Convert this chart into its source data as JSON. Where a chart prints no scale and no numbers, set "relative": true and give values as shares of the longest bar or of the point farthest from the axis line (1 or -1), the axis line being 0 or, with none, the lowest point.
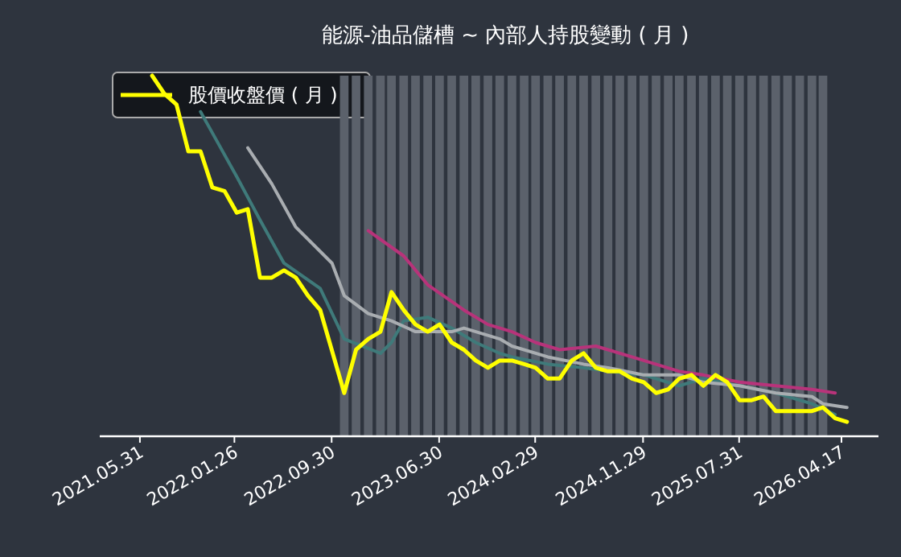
{
  "chart_data": {
    "type": "line",
    "title": "能源-油品儲槽 ~ 內部人持股變動 ( 月 )",
    "relative": true,
    "legend": "top left",
    "xlim": [
      "2021-02-18",
      "2026-07-20"
    ],
    "xticks": [
      {
        "value": "2021-05-31",
        "label": "2021.05.31"
      },
      {
        "value": "2022-01-26",
        "label": "2022.01.26"
      },
      {
        "value": "2022-09-30",
        "label": "2022.09.30"
      },
      {
        "value": "2023-06-30",
        "label": "2023.06.30"
      },
      {
        "value": "2024-02-29",
        "label": "2024.02.29"
      },
      {
        "value": "2024-11-29",
        "label": "2024.11.29"
      },
      {
        "value": "2025-07-31",
        "label": "2025.07.31"
      },
      {
        "value": "2026-04-17",
        "label": "2026.04.17"
      }
    ],
    "series": [
      {
        "type": "bar",
        "color": "#5b616b",
        "x": [
          "2022-11",
          "2022-12",
          "2023-01",
          "2023-02",
          "2023-03",
          "2023-04",
          "2023-05",
          "2023-06",
          "2023-07",
          "2023-08",
          "2023-09",
          "2023-10",
          "2023-11",
          "2023-12",
          "2024-01",
          "2024-02",
          "2024-03",
          "2024-04",
          "2024-05",
          "2024-06",
          "2024-07",
          "2024-08",
          "2024-09",
          "2024-10",
          "2024-11",
          "2024-12",
          "2025-01",
          "2025-02",
          "2025-03",
          "2025-04",
          "2025-05",
          "2025-06",
          "2025-07",
          "2025-08",
          "2025-09",
          "2025-10",
          "2025-11",
          "2025-12",
          "2026-01",
          "2026-02",
          "2026-03"
        ],
        "values": [
          1,
          1,
          1,
          1,
          1,
          1,
          1,
          1,
          1,
          1,
          1,
          1,
          1,
          1,
          1,
          1,
          1,
          1,
          1,
          1,
          1,
          1,
          1,
          1,
          1,
          1,
          1,
          1,
          1,
          1,
          1,
          1,
          1,
          1,
          1,
          1,
          1,
          1,
          1,
          1,
          1
        ]
      },
      {
        "color": "#3f7a7a",
        "x": [
          "2021-11",
          "2022-02",
          "2022-04",
          "2022-06",
          "2022-09",
          "2022-11",
          "2023-02",
          "2023-03",
          "2023-04",
          "2023-06",
          "2023-08",
          "2023-10",
          "2023-12",
          "2024-01",
          "2024-04",
          "2024-07",
          "2024-09",
          "2024-12",
          "2025-03",
          "2025-05",
          "2025-08",
          "2025-11",
          "2026-02",
          "2026-04"
        ],
        "values": [
          0.9,
          0.72,
          0.6,
          0.48,
          0.41,
          0.27,
          0.23,
          0.26,
          0.32,
          0.33,
          0.3,
          0.26,
          0.23,
          0.22,
          0.2,
          0.19,
          0.18,
          0.17,
          0.14,
          0.16,
          0.14,
          0.12,
          0.09,
          0.06
        ]
      },
      {
        "color": "#a9adb1",
        "x": [
          "2022-03",
          "2022-05",
          "2022-07",
          "2022-10",
          "2022-11",
          "2023-01",
          "2023-03",
          "2023-05",
          "2023-08",
          "2023-09",
          "2023-12",
          "2024-01",
          "2024-04",
          "2024-07",
          "2024-09",
          "2024-12",
          "2025-03",
          "2025-05",
          "2025-08",
          "2025-11",
          "2026-02",
          "2026-03",
          "2026-05"
        ],
        "values": [
          0.8,
          0.7,
          0.58,
          0.48,
          0.39,
          0.34,
          0.32,
          0.29,
          0.29,
          0.3,
          0.27,
          0.25,
          0.22,
          0.2,
          0.19,
          0.17,
          0.17,
          0.15,
          0.14,
          0.12,
          0.11,
          0.09,
          0.08
        ]
      },
      {
        "color": "#b8337a",
        "x": [
          "2023-01",
          "2023-04",
          "2023-06",
          "2023-09",
          "2023-11",
          "2024-01",
          "2024-03",
          "2024-05",
          "2024-08",
          "2024-09",
          "2024-12",
          "2025-03",
          "2025-05",
          "2025-08",
          "2025-11",
          "2026-02",
          "2026-04"
        ],
        "values": [
          0.57,
          0.5,
          0.42,
          0.35,
          0.31,
          0.29,
          0.26,
          0.24,
          0.25,
          0.24,
          0.21,
          0.18,
          0.17,
          0.15,
          0.14,
          0.13,
          0.12
        ]
      },
      {
        "name": "股價收盤價 ( 月 )",
        "color": "#ffff00",
        "x": [
          "2021-07",
          "2021-08",
          "2021-09",
          "2021-10",
          "2021-11",
          "2021-12",
          "2022-01",
          "2022-02",
          "2022-03",
          "2022-04",
          "2022-05",
          "2022-06",
          "2022-07",
          "2022-08",
          "2022-09",
          "2022-11",
          "2022-12",
          "2023-01",
          "2023-02",
          "2023-03",
          "2023-04",
          "2023-05",
          "2023-06",
          "2023-07",
          "2023-08",
          "2023-09",
          "2023-10",
          "2023-11",
          "2023-12",
          "2024-01",
          "2024-02",
          "2024-03",
          "2024-04",
          "2024-05",
          "2024-06",
          "2024-07",
          "2024-08",
          "2024-09",
          "2024-10",
          "2024-11",
          "2024-12",
          "2025-01",
          "2025-02",
          "2025-03",
          "2025-04",
          "2025-05",
          "2025-06",
          "2025-07",
          "2025-08",
          "2025-09",
          "2025-10",
          "2025-11",
          "2025-12",
          "2026-01",
          "2026-02",
          "2026-03",
          "2026-04",
          "2026-05"
        ],
        "values": [
          1.0,
          0.95,
          0.92,
          0.79,
          0.79,
          0.69,
          0.68,
          0.62,
          0.63,
          0.44,
          0.44,
          0.46,
          0.44,
          0.39,
          0.35,
          0.12,
          0.24,
          0.27,
          0.29,
          0.4,
          0.35,
          0.31,
          0.29,
          0.31,
          0.26,
          0.24,
          0.21,
          0.19,
          0.21,
          0.21,
          0.2,
          0.19,
          0.16,
          0.16,
          0.21,
          0.23,
          0.19,
          0.18,
          0.18,
          0.16,
          0.15,
          0.12,
          0.13,
          0.16,
          0.17,
          0.14,
          0.17,
          0.15,
          0.1,
          0.1,
          0.11,
          0.07,
          0.07,
          0.07,
          0.07,
          0.08,
          0.05,
          0.04
        ]
      }
    ]
  }
}
